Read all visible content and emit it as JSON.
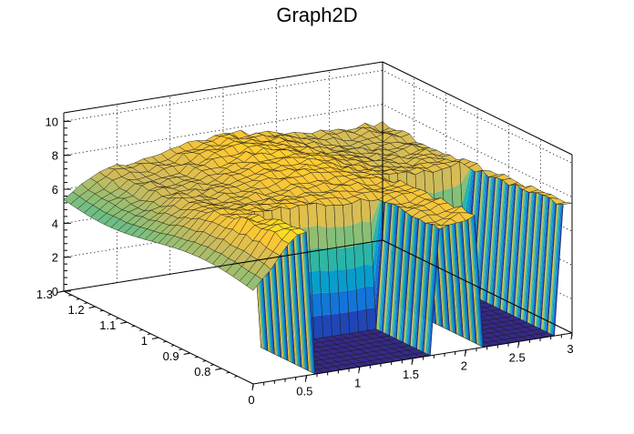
{
  "chart_data": {
    "type": "surface",
    "title": "Graph2D",
    "xlabel": "",
    "ylabel": "",
    "zlabel": "",
    "xlim": [
      0,
      3
    ],
    "ylim": [
      0.7,
      1.3
    ],
    "zlim": [
      0,
      10.5
    ],
    "x_ticks": [
      "0",
      "0.5",
      "1",
      "1.5",
      "2",
      "2.5",
      "3"
    ],
    "y_ticks": [
      "0.8",
      "0.9",
      "1",
      "1.1",
      "1.2",
      "1.3"
    ],
    "z_ticks": [
      "0",
      "2",
      "4",
      "6",
      "8",
      "10"
    ],
    "grid": true,
    "palette": "kBird",
    "colors": [
      "#352a87",
      "#0f5cdd",
      "#1481d6",
      "#06a4ca",
      "#2eb7a4",
      "#87bf77",
      "#d1bb59",
      "#fec832",
      "#f9fb0e"
    ],
    "surface_levels": {
      "plateau": 7.8,
      "floor": 0,
      "left_edge": 5.5,
      "notes_free": true
    }
  }
}
